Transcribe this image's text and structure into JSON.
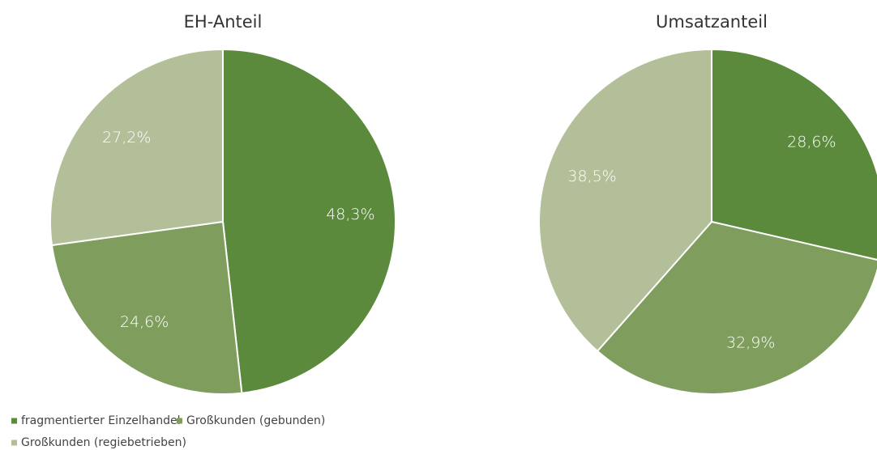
{
  "chart_data": [
    {
      "type": "pie",
      "title": "EH-Anteil",
      "categories": [
        "fragmentierter Einzelhandel",
        "Großkunden (gebunden)",
        "Großkunden (regiebetrieben)"
      ],
      "values": [
        48.3,
        24.6,
        27.2
      ],
      "value_labels": [
        "48,3%",
        "24,6%",
        "27,2%"
      ],
      "colors": [
        "#5b8a3d",
        "#7f9e5d",
        "#b3bf98"
      ],
      "legend": "bottom-left"
    },
    {
      "type": "pie",
      "title": "Umsatzanteil",
      "values": [
        28.6,
        32.9,
        38.5
      ],
      "value_labels": [
        "28,6%",
        "32,9%",
        "38,5%"
      ],
      "colors": [
        "#5b8a3d",
        "#7f9e5d",
        "#b3bf98"
      ]
    }
  ]
}
